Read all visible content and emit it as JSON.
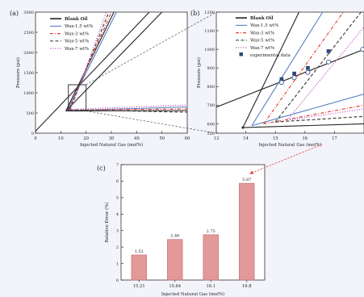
{
  "chart_data": [
    {
      "panel_label": "(a)",
      "type": "line",
      "xlabel": "Injected Natural Gas (mol%)",
      "ylabel": "Pressure (psi)",
      "xlim": [
        0,
        60
      ],
      "ylim": [
        0,
        3000
      ],
      "x_ticks": [
        "0",
        "10",
        "20",
        "30",
        "40",
        "50",
        "60"
      ],
      "y_ticks": [
        "0",
        "500",
        "1000",
        "1500",
        "2000",
        "2500",
        "3000"
      ],
      "legend": [
        "Blank Oil",
        "Wax-1.5 wt%",
        "Wax-3 wt%",
        "Wax-5 wt%",
        "Wax-7 wt%"
      ],
      "legend_position": "top-left",
      "series": [
        {
          "name": "Blank Oil",
          "color": "#222222",
          "style": "solid",
          "lines": [
            [
              [
                12,
                550
              ],
              [
                31,
                3000
              ]
            ],
            [
              [
                12,
                550
              ],
              [
                60,
                560
              ]
            ],
            [
              [
                12,
                550
              ],
              [
                50,
                3000
              ]
            ],
            [
              [
                0,
                50
              ],
              [
                45,
                3000
              ]
            ]
          ]
        },
        {
          "name": "Wax-1.5 wt%",
          "color": "#5b7fc2",
          "style": "solid",
          "lines": [
            [
              [
                12.5,
                560
              ],
              [
                32,
                3000
              ]
            ],
            [
              [
                12.5,
                560
              ],
              [
                60,
                650
              ]
            ]
          ]
        },
        {
          "name": "Wax-3 wt%",
          "color": "#e0403c",
          "style": "dashdot",
          "lines": [
            [
              [
                13,
                570
              ],
              [
                30,
                3000
              ]
            ],
            [
              [
                13,
                570
              ],
              [
                60,
                600
              ]
            ]
          ]
        },
        {
          "name": "Wax-5 wt%",
          "color": "#444444",
          "style": "dashed",
          "lines": [
            [
              [
                13.5,
                580
              ],
              [
                29,
                3000
              ]
            ],
            [
              [
                13.5,
                580
              ],
              [
                60,
                520
              ]
            ]
          ]
        },
        {
          "name": "Wax-7 wt%",
          "color": "#c25bc7",
          "style": "dotted",
          "lines": [
            [
              [
                14,
                590
              ],
              [
                28,
                3000
              ]
            ],
            [
              [
                14,
                590
              ],
              [
                60,
                700
              ]
            ]
          ]
        }
      ],
      "zoom_box": {
        "x": [
          13,
          20
        ],
        "y": [
          550,
          1200
        ]
      }
    },
    {
      "panel_label": "(b)",
      "type": "line",
      "xlabel": "Injected Natural Gas (mol%)",
      "ylabel": "Pressure (psi)",
      "xlim": [
        13,
        18
      ],
      "ylim": [
        550,
        1200
      ],
      "x_ticks": [
        "13",
        "14",
        "15",
        "16",
        "17"
      ],
      "y_ticks": [
        "550",
        "600",
        "700",
        "800",
        "900",
        "1000",
        "1100",
        "1200"
      ],
      "legend": [
        "Blank Oil",
        "Wax-1.5 wt%",
        "Wax-3 wt%",
        "Wax-5 wt%",
        "Wax-7 wt%",
        "experimental data"
      ],
      "legend_position": "top-left",
      "series": [
        {
          "name": "Blank Oil",
          "color": "#222222",
          "style": "solid",
          "lines": [
            [
              [
                13.9,
                580
              ],
              [
                15.8,
                1200
              ]
            ],
            [
              [
                13.9,
                580
              ],
              [
                18,
                600
              ]
            ],
            [
              [
                13,
                690
              ],
              [
                18,
                1000
              ]
            ]
          ]
        },
        {
          "name": "Wax-1.5 wt%",
          "color": "#5b7fc2",
          "style": "solid",
          "lines": [
            [
              [
                14.2,
                590
              ],
              [
                16.6,
                1200
              ]
            ],
            [
              [
                14.2,
                590
              ],
              [
                18,
                760
              ]
            ]
          ]
        },
        {
          "name": "Wax-3 wt%",
          "color": "#e0403c",
          "style": "dashdot",
          "lines": [
            [
              [
                14.6,
                600
              ],
              [
                17.3,
                1200
              ]
            ],
            [
              [
                14.6,
                600
              ],
              [
                18,
                700
              ]
            ]
          ]
        },
        {
          "name": "Wax-5 wt%",
          "color": "#444444",
          "style": "dashed",
          "lines": [
            [
              [
                15,
                610
              ],
              [
                17.9,
                1200
              ]
            ],
            [
              [
                15,
                610
              ],
              [
                18,
                640
              ]
            ]
          ]
        },
        {
          "name": "Wax-7 wt%",
          "color": "#c25bc7",
          "style": "dotted",
          "lines": [
            [
              [
                15.4,
                620
              ],
              [
                18,
                1120
              ]
            ],
            [
              [
                15.4,
                620
              ],
              [
                18,
                680
              ]
            ]
          ]
        }
      ],
      "experimental_data": [
        {
          "x": 15.21,
          "y": 840
        },
        {
          "x": 15.64,
          "y": 870
        },
        {
          "x": 16.1,
          "y": 900
        },
        {
          "x": 16.8,
          "y": 990
        }
      ],
      "model_points": [
        {
          "x": 15.21,
          "y": 822
        },
        {
          "x": 15.64,
          "y": 848
        },
        {
          "x": 16.1,
          "y": 876
        },
        {
          "x": 16.8,
          "y": 932
        },
        {
          "x": 17.95,
          "y": 1000
        }
      ]
    },
    {
      "panel_label": "(c)",
      "type": "bar",
      "xlabel": "Injected Natural Gas (mol%)",
      "ylabel": "Relative Error (%)",
      "ylim": [
        0,
        7
      ],
      "y_ticks": [
        "0",
        "1",
        "2",
        "3",
        "4",
        "5",
        "6",
        "7"
      ],
      "categories": [
        "15.21",
        "15.64",
        "16.1",
        "16.8"
      ],
      "values": [
        1.52,
        2.46,
        2.75,
        5.87
      ],
      "data_labels": [
        "1.52",
        "2.46",
        "2.75",
        "5.87"
      ],
      "bar_color": "#e3999a",
      "bar_edge": "#c26466",
      "arrow_color": "#e04545"
    }
  ]
}
